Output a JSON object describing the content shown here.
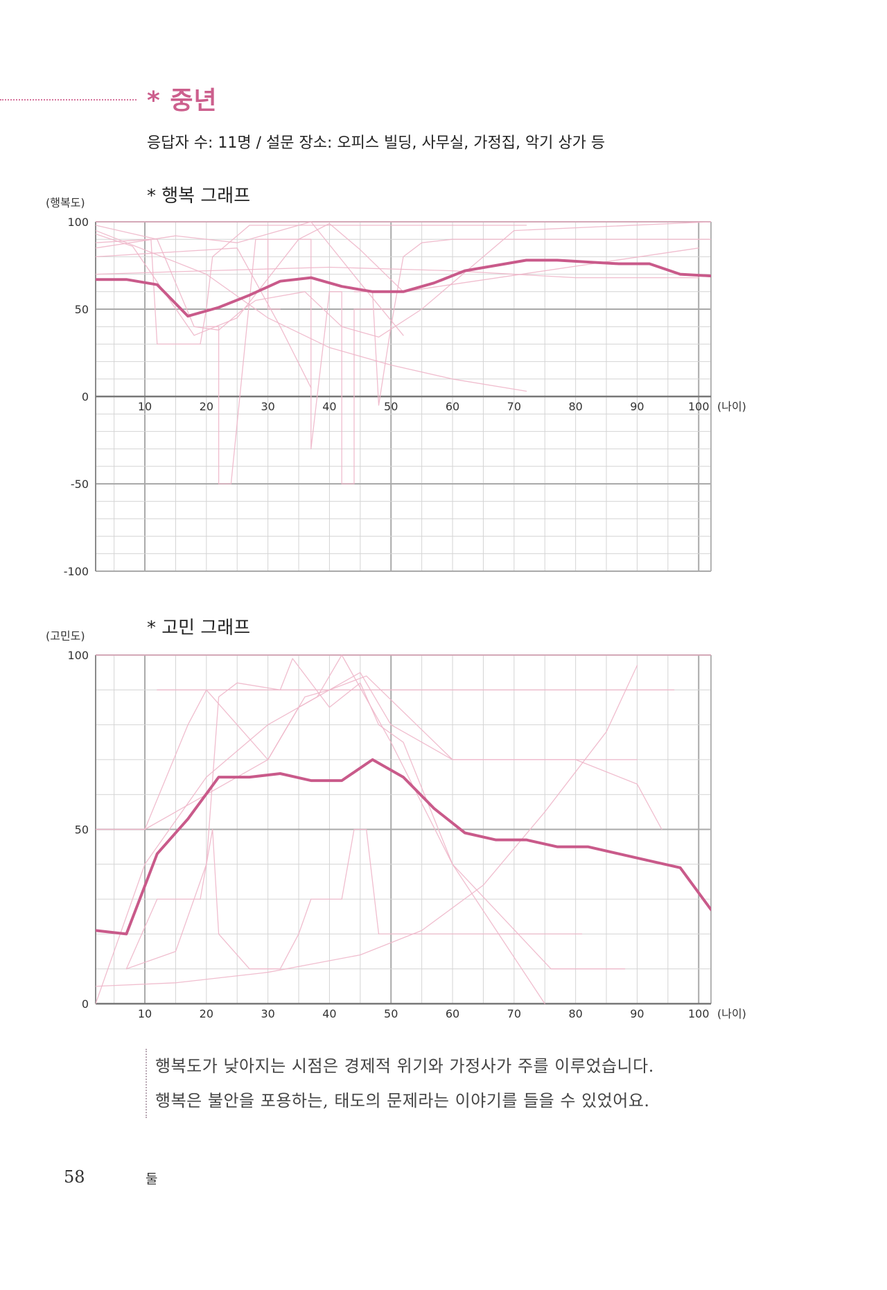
{
  "section": {
    "title": "* 중년",
    "meta": "응답자 수: 11명 / 설문 장소: 오피스 빌딩, 사무실, 가정집, 악기 상가 등"
  },
  "colors": {
    "accent": "#c95a8a",
    "thin_lines": "#eeb6c9",
    "grid": "#d4d4d4",
    "grid_major": "#a9a9a9"
  },
  "chart_data": [
    {
      "type": "line",
      "title": "* 행복 그래프",
      "ylabel": "(행복도)",
      "xlabel": "(나이)",
      "xlim": [
        2,
        102
      ],
      "ylim": [
        -100,
        100
      ],
      "x_ticks": [
        10,
        20,
        30,
        40,
        50,
        60,
        70,
        80,
        90,
        100
      ],
      "y_ticks": [
        100,
        50,
        0,
        -50,
        -100
      ],
      "series": [
        {
          "role": "average",
          "x": [
            2,
            7,
            12,
            17,
            22,
            27,
            32,
            37,
            42,
            47,
            52,
            57,
            62,
            67,
            72,
            77,
            82,
            87,
            92,
            97,
            102
          ],
          "y": [
            67,
            67,
            64,
            46,
            51,
            58,
            66,
            68,
            63,
            60,
            60,
            65,
            72,
            75,
            78,
            78,
            77,
            76,
            76,
            70,
            69
          ]
        },
        {
          "role": "individual",
          "x": [
            2,
            11,
            12,
            19,
            20,
            21,
            27,
            72
          ],
          "y": [
            88,
            90,
            30,
            30,
            50,
            80,
            98,
            98
          ]
        },
        {
          "role": "individual",
          "x": [
            2,
            8,
            18,
            25,
            35,
            40,
            45,
            52,
            100
          ],
          "y": [
            93,
            86,
            35,
            45,
            90,
            99,
            84,
            60,
            85
          ]
        },
        {
          "role": "individual",
          "x": [
            2,
            12,
            18,
            22,
            26,
            28,
            36,
            42,
            48,
            55,
            70,
            102
          ],
          "y": [
            98,
            90,
            40,
            38,
            50,
            55,
            60,
            40,
            34,
            50,
            95,
            100
          ]
        },
        {
          "role": "individual",
          "x": [
            2,
            20,
            30,
            40,
            50,
            60,
            72
          ],
          "y": [
            95,
            70,
            45,
            28,
            18,
            10,
            3
          ]
        },
        {
          "role": "individual",
          "x": [
            2,
            15,
            25,
            37,
            45,
            52
          ],
          "y": [
            85,
            92,
            88,
            100,
            65,
            35
          ]
        },
        {
          "role": "individual",
          "x": [
            20,
            22,
            22,
            24,
            28,
            30,
            30,
            32
          ],
          "y": [
            40,
            40,
            -50,
            -50,
            90,
            90,
            50,
            50
          ]
        },
        {
          "role": "individual",
          "x": [
            30,
            35,
            37,
            37,
            40,
            42,
            42,
            44,
            44,
            48,
            50
          ],
          "y": [
            90,
            90,
            90,
            -30,
            60,
            60,
            -50,
            -50,
            50,
            50,
            50
          ]
        },
        {
          "role": "individual",
          "x": [
            44,
            47,
            48,
            50,
            52,
            55,
            60,
            80,
            102
          ],
          "y": [
            60,
            60,
            -5,
            40,
            80,
            88,
            90,
            90,
            90
          ]
        },
        {
          "role": "individual",
          "x": [
            2,
            25,
            32,
            37
          ],
          "y": [
            80,
            85,
            40,
            5
          ]
        },
        {
          "role": "individual",
          "x": [
            2,
            20,
            40,
            60,
            80,
            100
          ],
          "y": [
            70,
            72,
            74,
            72,
            68,
            68
          ]
        }
      ]
    },
    {
      "type": "line",
      "title": "* 고민 그래프",
      "ylabel": "(고민도)",
      "xlabel": "(나이)",
      "xlim": [
        2,
        102
      ],
      "ylim": [
        0,
        100
      ],
      "x_ticks": [
        10,
        20,
        30,
        40,
        50,
        60,
        70,
        80,
        90,
        100
      ],
      "y_ticks": [
        100,
        50,
        0
      ],
      "series": [
        {
          "role": "average",
          "x": [
            2,
            7,
            12,
            17,
            22,
            27,
            32,
            37,
            42,
            47,
            52,
            57,
            62,
            67,
            72,
            77,
            82,
            87,
            92,
            97,
            102
          ],
          "y": [
            21,
            20,
            43,
            53,
            65,
            65,
            66,
            64,
            64,
            70,
            65,
            56,
            49,
            47,
            47,
            45,
            45,
            43,
            41,
            39,
            27
          ]
        },
        {
          "role": "individual",
          "x": [
            2,
            10,
            17,
            20,
            25,
            30,
            35,
            40,
            45,
            50,
            60,
            90
          ],
          "y": [
            50,
            50,
            80,
            90,
            80,
            70,
            85,
            90,
            95,
            80,
            70,
            70
          ]
        },
        {
          "role": "individual",
          "x": [
            7,
            15,
            20,
            22,
            25,
            32,
            34,
            40,
            45,
            48,
            52,
            60,
            75
          ],
          "y": [
            10,
            15,
            40,
            88,
            92,
            90,
            99,
            85,
            92,
            80,
            75,
            40,
            0
          ]
        },
        {
          "role": "individual",
          "x": [
            2,
            10,
            20,
            30,
            38,
            42,
            50,
            60,
            76,
            88
          ],
          "y": [
            0,
            40,
            65,
            80,
            88,
            100,
            75,
            40,
            10,
            10
          ]
        },
        {
          "role": "individual",
          "x": [
            7,
            12,
            19,
            21,
            22,
            27,
            32,
            35,
            37,
            42,
            44,
            46,
            48,
            52,
            81
          ],
          "y": [
            10,
            30,
            30,
            50,
            20,
            10,
            10,
            20,
            30,
            30,
            50,
            50,
            20,
            20,
            20
          ]
        },
        {
          "role": "individual",
          "x": [
            2,
            15,
            30,
            45,
            55,
            65,
            75,
            85,
            90
          ],
          "y": [
            5,
            6,
            9,
            14,
            21,
            34,
            55,
            78,
            97
          ]
        },
        {
          "role": "individual",
          "x": [
            2,
            10,
            20,
            30,
            36,
            40,
            46,
            60,
            80,
            90,
            94
          ],
          "y": [
            50,
            50,
            60,
            70,
            88,
            90,
            94,
            70,
            70,
            63,
            50
          ]
        },
        {
          "role": "individual",
          "x": [
            12,
            40,
            50,
            60,
            96
          ],
          "y": [
            90,
            90,
            90,
            90,
            90
          ]
        }
      ]
    }
  ],
  "quote": {
    "line1": "행복도가 낮아지는 시점은 경제적 위기와 가정사가 주를 이루었습니다.",
    "line2": "행복은 불안을 포용하는, 태도의 문제라는 이야기를 들을 수 있었어요."
  },
  "footer": {
    "page_number": "58",
    "running_head": "둘"
  }
}
